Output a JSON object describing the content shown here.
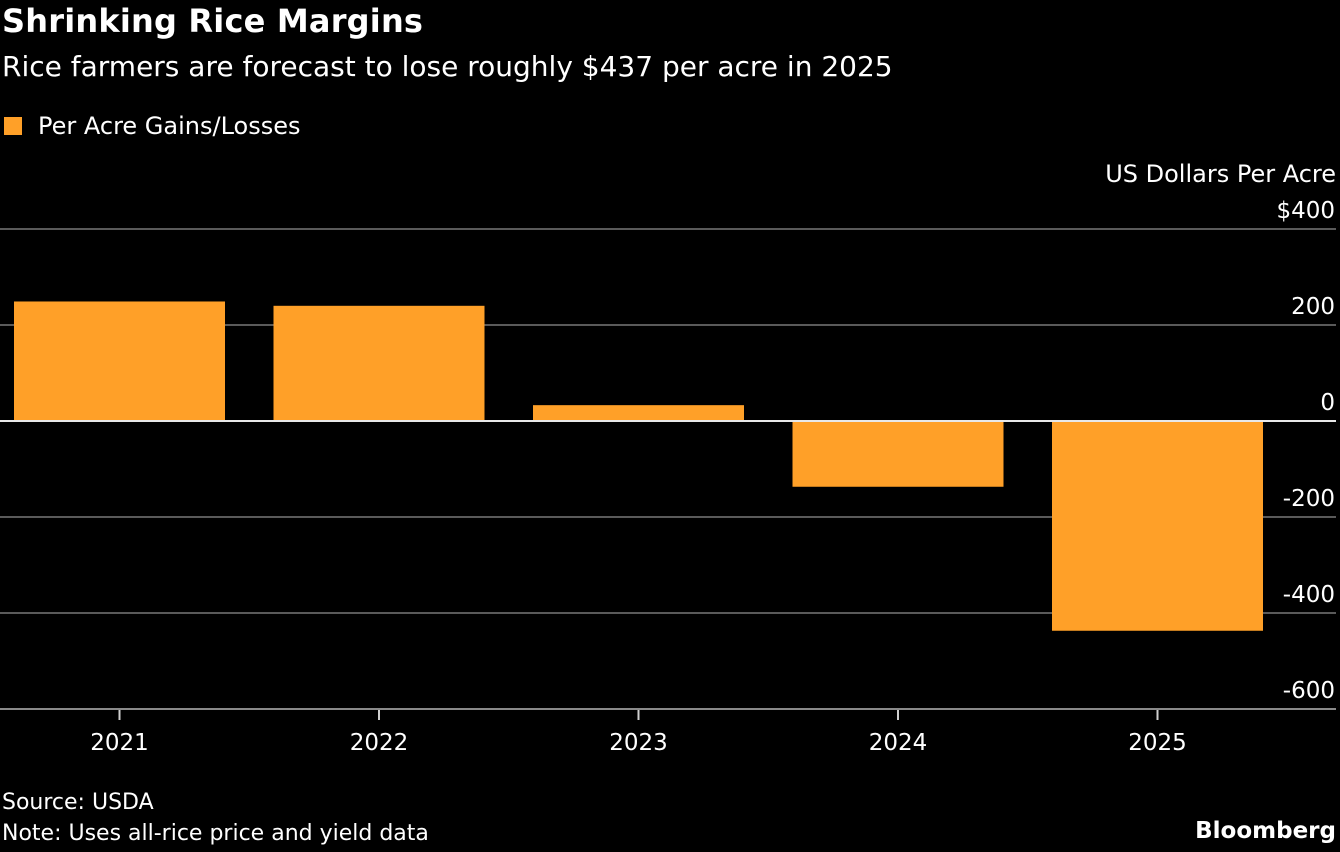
{
  "chart_data": {
    "type": "bar",
    "title": "Shrinking Rice Margins",
    "subtitle": "Rice farmers are forecast to lose roughly $437 per acre in 2025",
    "legend": [
      "Per Acre Gains/Losses"
    ],
    "legend_position": "top-left",
    "ylabel": "US Dollars Per Acre",
    "xlabel": "",
    "categories": [
      "2021",
      "2022",
      "2023",
      "2024",
      "2025"
    ],
    "series": [
      {
        "name": "Per Acre Gains/Losses",
        "values": [
          249,
          240,
          33,
          -137,
          -437
        ]
      }
    ],
    "ylim": [
      -600,
      400
    ],
    "yticks": [
      400,
      200,
      0,
      -200,
      -400,
      -600
    ],
    "ytick_labels": [
      "$400",
      "200",
      "0",
      "-200",
      "-400",
      "-600"
    ],
    "grid": true,
    "bar_color": "#ffa028"
  },
  "footer": {
    "source": "Source: USDA",
    "note": "Note: Uses all-rice price and yield data",
    "brand": "Bloomberg"
  }
}
